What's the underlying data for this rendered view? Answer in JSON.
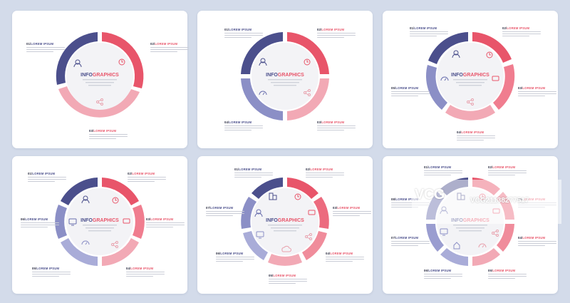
{
  "theme": {
    "navy": "#4b4f8c",
    "red": "#e8556a",
    "pink": "#f2a9b5",
    "lavender": "#8b8fc6",
    "background": "#d3dbea"
  },
  "center": {
    "info": "INFO",
    "graphics": "GRAPHICS"
  },
  "steps": {
    "s01": {
      "num": "01/",
      "rest": "LOREM IPSUM"
    },
    "s02": {
      "num": "02/",
      "rest": "LOREM IPSUM"
    },
    "s03": {
      "num": "03/",
      "rest": "LOREM IPSUM"
    },
    "s04": {
      "num": "04/",
      "rest": "LOREM IPSUM"
    },
    "s05": {
      "num": "05/",
      "rest": "LOREM IPSUM"
    },
    "s06": {
      "num": "06/",
      "rest": "LOREM IPSUM"
    },
    "s07": {
      "num": "07/",
      "rest": "LOREM IPSUM"
    },
    "s08": {
      "num": "08/",
      "rest": "LOREM IPSUM"
    }
  },
  "watermark": {
    "logo": "VCG",
    "text": "VCG21138277517"
  },
  "icons": [
    "user-icon",
    "clock-icon",
    "share-icon",
    "speedometer-icon",
    "chat-icon",
    "monitor-icon",
    "cloud-icon",
    "building-icon",
    "home-icon"
  ]
}
